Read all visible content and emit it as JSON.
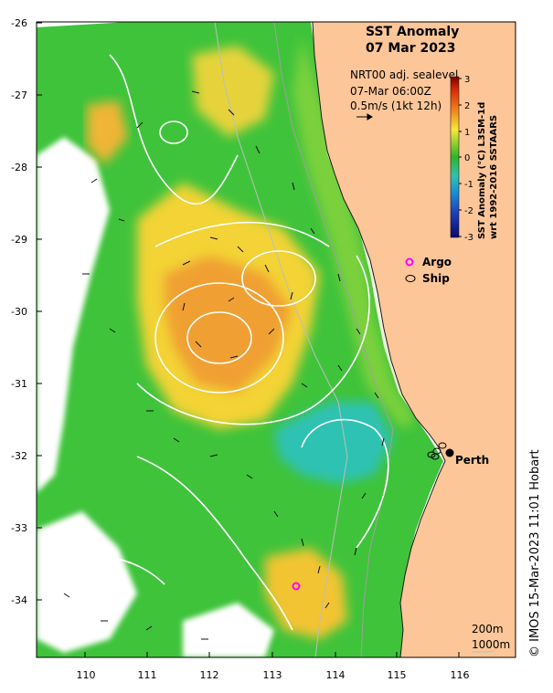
{
  "title": {
    "line1": "SST Anomaly",
    "line2": "07 Mar 2023"
  },
  "currents_note": {
    "source": "NRT00 adj. sealevel",
    "time": "07-Mar 06:00Z",
    "scale": "0.5m/s (1kt 12h)"
  },
  "colorbar": {
    "label_line1": "SST Anomaly (°C) L3SM-1d",
    "label_line2": "wrt 1992-2016 SSTAARS",
    "ticks": [
      "3",
      "2",
      "1",
      "0",
      "-1",
      "-2",
      "-3"
    ],
    "min": -3,
    "max": 3
  },
  "legend": {
    "argo_label": "Argo",
    "ship_label": "Ship",
    "argo_color": "#ff00ff",
    "ship_color": "#000000"
  },
  "places": {
    "perth": "Perth"
  },
  "isobaths": {
    "shallow": "200m",
    "deep": "1000m"
  },
  "axes": {
    "lon_ticks": [
      "110",
      "111",
      "112",
      "113",
      "114",
      "115",
      "116"
    ],
    "lat_ticks": [
      "-26",
      "-27",
      "-28",
      "-29",
      "-30",
      "-31",
      "-32",
      "-33",
      "-34"
    ],
    "lon_range": [
      109.2,
      117.0
    ],
    "lat_range": [
      -34.8,
      -26.0
    ]
  },
  "credit": "© IMOS 15-Mar-2023 11:01 Hobart",
  "colors": {
    "land": "#fcc699",
    "ocean_green": "#3fc33b",
    "warm_yellow": "#f3d336",
    "warm_orange": "#f0a032",
    "cool_cyan": "#2fc2b3"
  }
}
